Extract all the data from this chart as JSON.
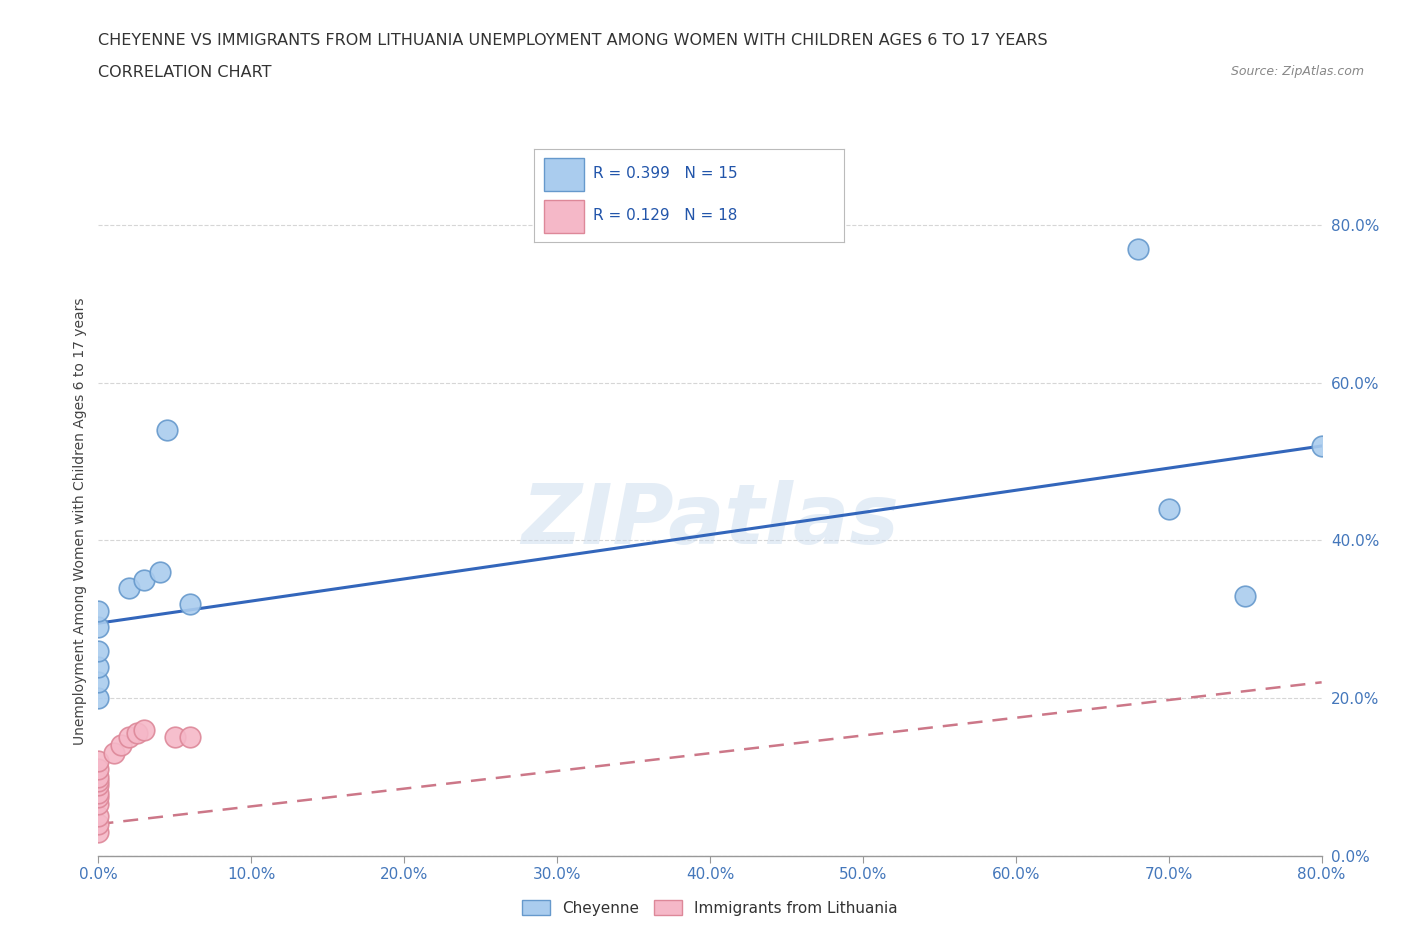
{
  "title_line1": "CHEYENNE VS IMMIGRANTS FROM LITHUANIA UNEMPLOYMENT AMONG WOMEN WITH CHILDREN AGES 6 TO 17 YEARS",
  "title_line2": "CORRELATION CHART",
  "source_text": "Source: ZipAtlas.com",
  "ylabel": "Unemployment Among Women with Children Ages 6 to 17 years",
  "xmin": 0.0,
  "xmax": 0.8,
  "ymin": 0.0,
  "ymax": 0.85,
  "yticks": [
    0.0,
    0.2,
    0.4,
    0.6,
    0.8
  ],
  "ytick_labels": [
    "0.0%",
    "20.0%",
    "40.0%",
    "60.0%",
    "80.0%"
  ],
  "cheyenne_x": [
    0.0,
    0.0,
    0.0,
    0.0,
    0.0,
    0.0,
    0.02,
    0.03,
    0.04,
    0.045,
    0.06,
    0.68,
    0.7,
    0.75,
    0.8
  ],
  "cheyenne_y": [
    0.2,
    0.22,
    0.24,
    0.26,
    0.29,
    0.31,
    0.34,
    0.35,
    0.36,
    0.54,
    0.32,
    0.77,
    0.44,
    0.33,
    0.52
  ],
  "lithuania_x": [
    0.0,
    0.0,
    0.0,
    0.0,
    0.0,
    0.0,
    0.0,
    0.0,
    0.0,
    0.0,
    0.0,
    0.01,
    0.015,
    0.02,
    0.025,
    0.03,
    0.05,
    0.06
  ],
  "lithuania_y": [
    0.03,
    0.04,
    0.05,
    0.065,
    0.075,
    0.08,
    0.09,
    0.095,
    0.1,
    0.11,
    0.12,
    0.13,
    0.14,
    0.15,
    0.155,
    0.16,
    0.15,
    0.15
  ],
  "cheyenne_color": "#aaccee",
  "cheyenne_edge": "#6699cc",
  "lithuania_color": "#f5b8c8",
  "lithuania_edge": "#dd8899",
  "trend_cheyenne_color": "#3366bb",
  "trend_lithuania_color": "#cc7788",
  "trend_cheyenne_start_y": 0.295,
  "trend_cheyenne_end_y": 0.52,
  "trend_lithuania_start_y": 0.04,
  "trend_lithuania_end_y": 0.22,
  "R_cheyenne": 0.399,
  "N_cheyenne": 15,
  "R_lithuania": 0.129,
  "N_lithuania": 18,
  "watermark": "ZIPatlas",
  "legend_label_cheyenne": "Cheyenne",
  "legend_label_lithuania": "Immigrants from Lithuania"
}
